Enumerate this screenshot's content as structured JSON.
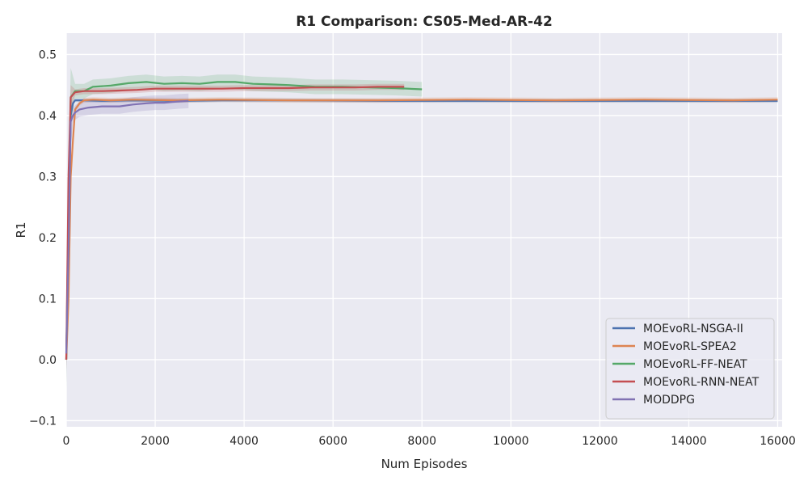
{
  "chart_data": {
    "type": "line",
    "title": "R1 Comparison: CS05-Med-AR-42",
    "xlabel": "Num Episodes",
    "ylabel": "R1",
    "xlim": [
      0,
      16100
    ],
    "ylim": [
      -0.11,
      0.535
    ],
    "xticks": [
      0,
      2000,
      4000,
      6000,
      8000,
      10000,
      12000,
      14000,
      16000
    ],
    "xtick_labels": [
      "0",
      "2000",
      "4000",
      "6000",
      "8000",
      "10000",
      "12000",
      "14000",
      "16000"
    ],
    "yticks": [
      -0.1,
      0.0,
      0.1,
      0.2,
      0.3,
      0.4,
      0.5
    ],
    "ytick_labels": [
      "−0.1",
      "0.0",
      "0.1",
      "0.2",
      "0.3",
      "0.4",
      "0.5"
    ],
    "grid": true,
    "legend_position": "lower-right",
    "background": "#EAEAF2",
    "series": [
      {
        "name": "MOEvoRL-NSGA-II",
        "color": "#4C72B0",
        "x": [
          0,
          50,
          100,
          150,
          200,
          400,
          800,
          1500,
          2500,
          3500,
          5000,
          7000,
          9000,
          11000,
          13000,
          15000,
          16000
        ],
        "y": [
          0.0,
          0.2,
          0.4,
          0.42,
          0.425,
          0.425,
          0.424,
          0.425,
          0.424,
          0.425,
          0.425,
          0.424,
          0.424,
          0.424,
          0.424,
          0.424,
          0.424
        ],
        "band": 0.003
      },
      {
        "name": "MOEvoRL-SPEA2",
        "color": "#DD8452",
        "x": [
          0,
          50,
          100,
          150,
          200,
          300,
          400,
          600,
          1000,
          1500,
          2500,
          3500,
          5000,
          7000,
          9000,
          11000,
          13000,
          15000,
          16000
        ],
        "y": [
          0.0,
          0.1,
          0.3,
          0.36,
          0.41,
          0.42,
          0.425,
          0.426,
          0.425,
          0.426,
          0.425,
          0.426,
          0.425,
          0.425,
          0.426,
          0.425,
          0.426,
          0.425,
          0.426
        ],
        "band": 0.004
      },
      {
        "name": "MOEvoRL-FF-NEAT",
        "color": "#55A868",
        "x": [
          0,
          50,
          100,
          200,
          400,
          600,
          1000,
          1400,
          1800,
          2200,
          2600,
          3000,
          3400,
          3800,
          4200,
          4600,
          5000,
          5600,
          6200,
          6800,
          7400,
          8000
        ],
        "y": [
          0.0,
          0.25,
          0.43,
          0.44,
          0.44,
          0.447,
          0.449,
          0.453,
          0.455,
          0.452,
          0.453,
          0.452,
          0.455,
          0.455,
          0.452,
          0.451,
          0.45,
          0.447,
          0.447,
          0.446,
          0.445,
          0.443
        ],
        "band": 0.012
      },
      {
        "name": "MOEvoRL-RNN-NEAT",
        "color": "#C44E52",
        "x": [
          0,
          50,
          100,
          200,
          400,
          800,
          1200,
          1600,
          2000,
          2500,
          3000,
          3500,
          4000,
          4500,
          5000,
          5500,
          6000,
          6500,
          7000,
          7600
        ],
        "y": [
          0.0,
          0.3,
          0.43,
          0.438,
          0.44,
          0.44,
          0.441,
          0.442,
          0.444,
          0.444,
          0.444,
          0.444,
          0.445,
          0.445,
          0.445,
          0.446,
          0.446,
          0.446,
          0.447,
          0.447
        ],
        "band": 0.005
      },
      {
        "name": "MODDPG",
        "color": "#8172B3",
        "x": [
          0,
          50,
          100,
          150,
          200,
          300,
          500,
          800,
          1000,
          1200,
          1500,
          1800,
          2000,
          2200,
          2500,
          2750
        ],
        "y": [
          0.01,
          0.18,
          0.39,
          0.4,
          0.405,
          0.41,
          0.413,
          0.415,
          0.415,
          0.415,
          0.418,
          0.42,
          0.421,
          0.421,
          0.423,
          0.424
        ],
        "band": 0.012
      }
    ]
  }
}
